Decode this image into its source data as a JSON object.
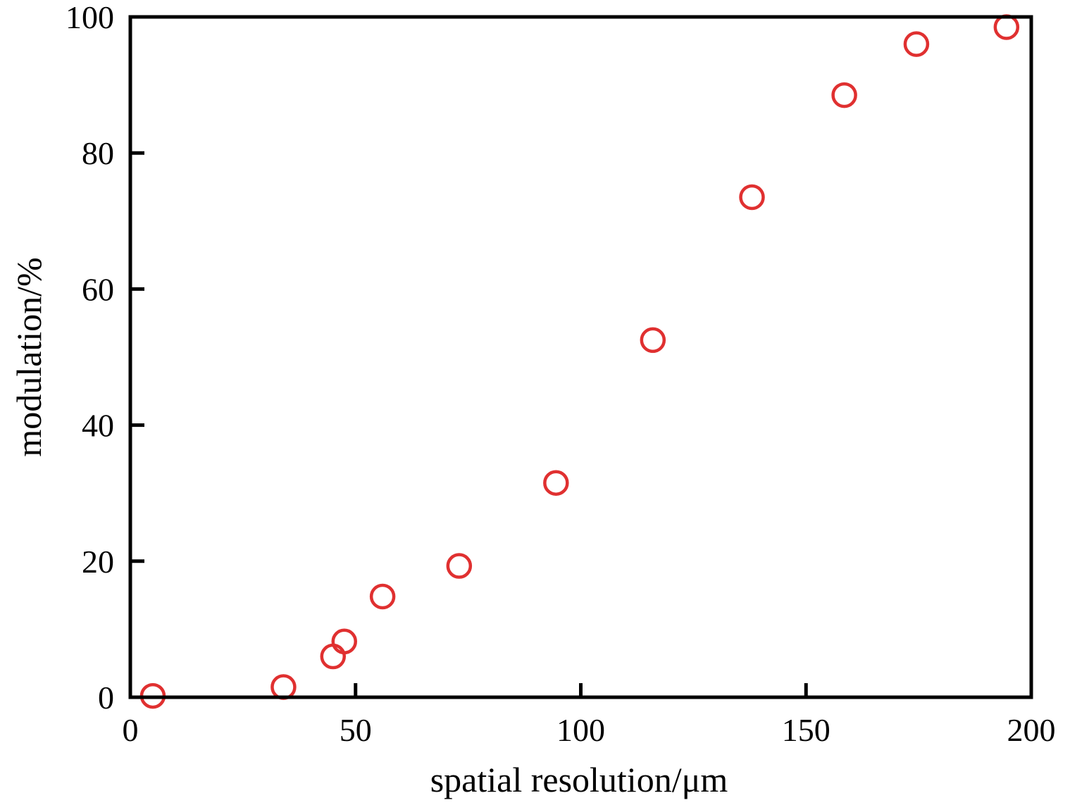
{
  "chart_data": {
    "type": "scatter",
    "title": "",
    "xlabel": "spatial resolution/μm",
    "ylabel": "modulation/%",
    "xlim": [
      0,
      200
    ],
    "ylim": [
      0,
      100
    ],
    "xticks": [
      0,
      50,
      100,
      150,
      200
    ],
    "yticks": [
      0,
      20,
      40,
      60,
      80,
      100
    ],
    "x_tick_labels": [
      "0",
      "50",
      "100",
      "150",
      "200"
    ],
    "y_tick_labels": [
      "0",
      "20",
      "40",
      "60",
      "80",
      "100"
    ],
    "grid": false,
    "marker": "open-circle",
    "marker_color": "#e03030",
    "series": [
      {
        "x": [
          5,
          34,
          45,
          47.5,
          56,
          73,
          94.5,
          116,
          138,
          158.5,
          174.5,
          194.5
        ],
        "y": [
          0.2,
          1.5,
          6,
          8.2,
          14.8,
          19.3,
          31.5,
          52.5,
          73.5,
          88.5,
          96,
          98.5
        ]
      }
    ]
  }
}
